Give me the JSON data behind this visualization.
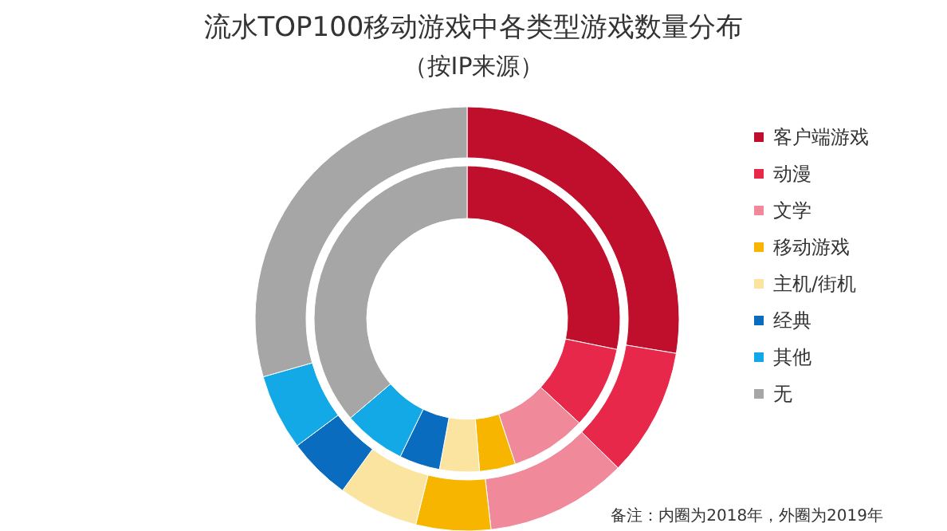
{
  "chart_data": {
    "type": "donut",
    "title": "流水TOP100移动游戏中各类型游戏数量分布",
    "subtitle": "（按IP来源）",
    "categories": [
      "客户端游戏",
      "动漫",
      "文学",
      "移动游戏",
      "主机/街机",
      "经典",
      "其他",
      "无"
    ],
    "colors": [
      "#c00f2c",
      "#e8284a",
      "#f08a9a",
      "#f7b500",
      "#fbe3a0",
      "#0a6cbf",
      "#13a8e6",
      "#a6a6a6"
    ],
    "series": [
      {
        "values": [
          28.2,
          8.7,
          8.0,
          3.8,
          4.2,
          4.3,
          6.6,
          36.2
        ]
      },
      {
        "values": [
          27.6,
          9.8,
          10.8,
          5.7,
          6.1,
          4.8,
          5.8,
          29.4
        ]
      }
    ],
    "legend": "right",
    "annotations": [
      "备注：内圈为2018年，外圈为2019年"
    ]
  }
}
